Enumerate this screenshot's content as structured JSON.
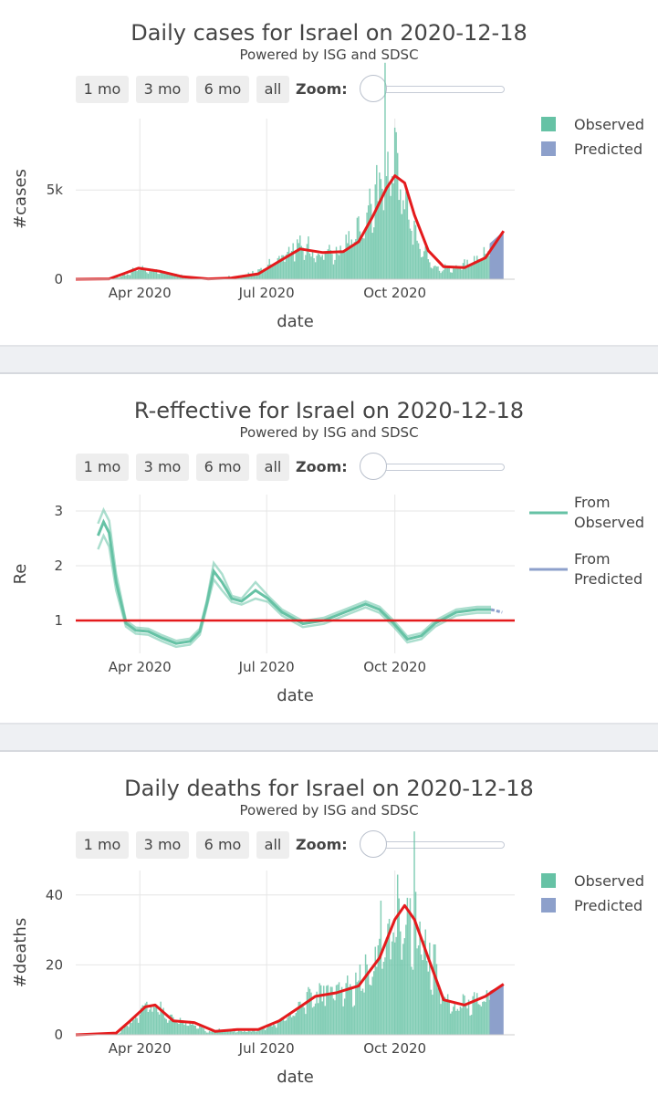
{
  "controls": {
    "buttons": [
      "1 mo",
      "3 mo",
      "6 mo",
      "all"
    ],
    "zoom_label": "Zoom:"
  },
  "colors": {
    "observed": "#66c2a5",
    "predicted": "#8da0cb",
    "fit": "#e41a1c",
    "grid": "#e6e6e6"
  },
  "chart_data": [
    {
      "id": "cases",
      "type": "bar",
      "title": "Daily cases for Israel on 2020-12-18",
      "subtitle": "Powered by ISG and SDSC",
      "xlabel": "date",
      "ylabel": "#cases",
      "ylim": [
        0,
        9000
      ],
      "x_range": [
        "2020-02-15",
        "2020-12-26"
      ],
      "yticks": [
        {
          "value": 0,
          "label": "0"
        },
        {
          "value": 5000,
          "label": "5k"
        }
      ],
      "xticks": [
        {
          "date": "2020-04-01",
          "label": "Apr 2020"
        },
        {
          "date": "2020-07-01",
          "label": "Jul 2020"
        },
        {
          "date": "2020-10-01",
          "label": "Oct 2020"
        }
      ],
      "legend": {
        "position": "top-right",
        "entries": [
          "Observed",
          "Predicted"
        ]
      },
      "observed_end": "2020-12-08",
      "observed_profile": [
        [
          "2020-02-15",
          0
        ],
        [
          "2020-03-10",
          20
        ],
        [
          "2020-03-20",
          200
        ],
        [
          "2020-03-31",
          600
        ],
        [
          "2020-04-10",
          500
        ],
        [
          "2020-04-25",
          300
        ],
        [
          "2020-05-10",
          60
        ],
        [
          "2020-05-25",
          30
        ],
        [
          "2020-06-10",
          150
        ],
        [
          "2020-06-25",
          450
        ],
        [
          "2020-07-10",
          1200
        ],
        [
          "2020-07-22",
          1800
        ],
        [
          "2020-08-05",
          1650
        ],
        [
          "2020-08-20",
          1500
        ],
        [
          "2020-09-01",
          2100
        ],
        [
          "2020-09-12",
          3800
        ],
        [
          "2020-09-25",
          6200
        ],
        [
          "2020-10-01",
          6500
        ],
        [
          "2020-10-10",
          3800
        ],
        [
          "2020-10-20",
          1500
        ],
        [
          "2020-11-01",
          650
        ],
        [
          "2020-11-15",
          650
        ],
        [
          "2020-11-28",
          1050
        ],
        [
          "2020-12-08",
          1800
        ]
      ],
      "predicted": [
        [
          "2020-12-08",
          2000
        ],
        [
          "2020-12-18",
          2700
        ]
      ],
      "fit_curve": [
        [
          "2020-02-15",
          0
        ],
        [
          "2020-03-10",
          20
        ],
        [
          "2020-03-20",
          300
        ],
        [
          "2020-03-31",
          620
        ],
        [
          "2020-04-15",
          450
        ],
        [
          "2020-05-01",
          150
        ],
        [
          "2020-05-20",
          20
        ],
        [
          "2020-06-05",
          60
        ],
        [
          "2020-06-25",
          300
        ],
        [
          "2020-07-10",
          1000
        ],
        [
          "2020-07-25",
          1700
        ],
        [
          "2020-08-10",
          1500
        ],
        [
          "2020-08-25",
          1550
        ],
        [
          "2020-09-05",
          2100
        ],
        [
          "2020-09-15",
          3500
        ],
        [
          "2020-09-25",
          5100
        ],
        [
          "2020-10-01",
          5800
        ],
        [
          "2020-10-08",
          5400
        ],
        [
          "2020-10-15",
          3600
        ],
        [
          "2020-10-25",
          1600
        ],
        [
          "2020-11-05",
          700
        ],
        [
          "2020-11-20",
          650
        ],
        [
          "2020-12-05",
          1200
        ],
        [
          "2020-12-18",
          2700
        ]
      ]
    },
    {
      "id": "re",
      "type": "line",
      "title": "R-effective for Israel on 2020-12-18",
      "subtitle": "Powered by ISG and SDSC",
      "xlabel": "date",
      "ylabel": "Re",
      "ylim": [
        0.4,
        3.3
      ],
      "x_range": [
        "2020-02-15",
        "2020-12-26"
      ],
      "yticks": [
        {
          "value": 1,
          "label": "1"
        },
        {
          "value": 2,
          "label": "2"
        },
        {
          "value": 3,
          "label": "3"
        }
      ],
      "xticks": [
        {
          "date": "2020-04-01",
          "label": "Apr 2020"
        },
        {
          "date": "2020-07-01",
          "label": "Jul 2020"
        },
        {
          "date": "2020-10-01",
          "label": "Oct 2020"
        }
      ],
      "reference_line": 1,
      "legend": {
        "position": "top-right",
        "entries": [
          "From Observed",
          "From Predicted"
        ]
      },
      "observed": [
        [
          "2020-03-02",
          2.55
        ],
        [
          "2020-03-06",
          2.8
        ],
        [
          "2020-03-10",
          2.6
        ],
        [
          "2020-03-15",
          1.7
        ],
        [
          "2020-03-22",
          0.95
        ],
        [
          "2020-03-29",
          0.82
        ],
        [
          "2020-04-07",
          0.8
        ],
        [
          "2020-04-17",
          0.68
        ],
        [
          "2020-04-27",
          0.58
        ],
        [
          "2020-05-07",
          0.62
        ],
        [
          "2020-05-14",
          0.8
        ],
        [
          "2020-05-19",
          1.3
        ],
        [
          "2020-05-24",
          1.9
        ],
        [
          "2020-05-30",
          1.7
        ],
        [
          "2020-06-06",
          1.4
        ],
        [
          "2020-06-13",
          1.35
        ],
        [
          "2020-06-23",
          1.55
        ],
        [
          "2020-07-02",
          1.4
        ],
        [
          "2020-07-12",
          1.15
        ],
        [
          "2020-07-27",
          0.94
        ],
        [
          "2020-08-11",
          1.0
        ],
        [
          "2020-08-26",
          1.15
        ],
        [
          "2020-09-10",
          1.3
        ],
        [
          "2020-09-20",
          1.2
        ],
        [
          "2020-09-30",
          0.95
        ],
        [
          "2020-10-10",
          0.66
        ],
        [
          "2020-10-20",
          0.72
        ],
        [
          "2020-10-30",
          0.95
        ],
        [
          "2020-11-14",
          1.15
        ],
        [
          "2020-11-29",
          1.2
        ],
        [
          "2020-12-09",
          1.2
        ]
      ],
      "predicted": [
        [
          "2020-12-09",
          1.2
        ],
        [
          "2020-12-17",
          1.15
        ]
      ]
    },
    {
      "id": "deaths",
      "type": "bar",
      "title": "Daily deaths for Israel on 2020-12-18",
      "subtitle": "Powered by ISG and SDSC",
      "xlabel": "date",
      "ylabel": "#deaths",
      "ylim": [
        0,
        47
      ],
      "x_range": [
        "2020-02-15",
        "2020-12-26"
      ],
      "yticks": [
        {
          "value": 0,
          "label": "0"
        },
        {
          "value": 20,
          "label": "20"
        },
        {
          "value": 40,
          "label": "40"
        }
      ],
      "xticks": [
        {
          "date": "2020-04-01",
          "label": "Apr 2020"
        },
        {
          "date": "2020-07-01",
          "label": "Jul 2020"
        },
        {
          "date": "2020-10-01",
          "label": "Oct 2020"
        }
      ],
      "legend": {
        "position": "top-right",
        "entries": [
          "Observed",
          "Predicted"
        ]
      },
      "observed_end": "2020-12-08",
      "observed_profile": [
        [
          "2020-02-15",
          0
        ],
        [
          "2020-03-15",
          0
        ],
        [
          "2020-03-25",
          3
        ],
        [
          "2020-04-05",
          8
        ],
        [
          "2020-04-15",
          8
        ],
        [
          "2020-04-25",
          4
        ],
        [
          "2020-05-10",
          3
        ],
        [
          "2020-05-20",
          1
        ],
        [
          "2020-06-05",
          1
        ],
        [
          "2020-06-20",
          1
        ],
        [
          "2020-07-05",
          3
        ],
        [
          "2020-07-20",
          6
        ],
        [
          "2020-08-01",
          10
        ],
        [
          "2020-08-15",
          12
        ],
        [
          "2020-09-01",
          13
        ],
        [
          "2020-09-15",
          20
        ],
        [
          "2020-10-01",
          32
        ],
        [
          "2020-10-10",
          36
        ],
        [
          "2020-10-20",
          28
        ],
        [
          "2020-11-01",
          16
        ],
        [
          "2020-11-10",
          8
        ],
        [
          "2020-11-25",
          9
        ],
        [
          "2020-12-08",
          12
        ]
      ],
      "predicted": [
        [
          "2020-12-08",
          12.5
        ],
        [
          "2020-12-18",
          14.5
        ]
      ],
      "fit_curve": [
        [
          "2020-02-15",
          0
        ],
        [
          "2020-03-15",
          0.5
        ],
        [
          "2020-03-25",
          4
        ],
        [
          "2020-04-05",
          8
        ],
        [
          "2020-04-12",
          8.5
        ],
        [
          "2020-04-25",
          4
        ],
        [
          "2020-05-10",
          3.5
        ],
        [
          "2020-05-25",
          1
        ],
        [
          "2020-06-10",
          1.5
        ],
        [
          "2020-06-25",
          1.5
        ],
        [
          "2020-07-10",
          4
        ],
        [
          "2020-07-25",
          8
        ],
        [
          "2020-08-05",
          11
        ],
        [
          "2020-08-20",
          12
        ],
        [
          "2020-09-05",
          14
        ],
        [
          "2020-09-20",
          22
        ],
        [
          "2020-10-01",
          33
        ],
        [
          "2020-10-08",
          37
        ],
        [
          "2020-10-15",
          33
        ],
        [
          "2020-10-25",
          22
        ],
        [
          "2020-11-05",
          10
        ],
        [
          "2020-11-20",
          8.5
        ],
        [
          "2020-12-05",
          11
        ],
        [
          "2020-12-18",
          14.5
        ]
      ]
    }
  ]
}
